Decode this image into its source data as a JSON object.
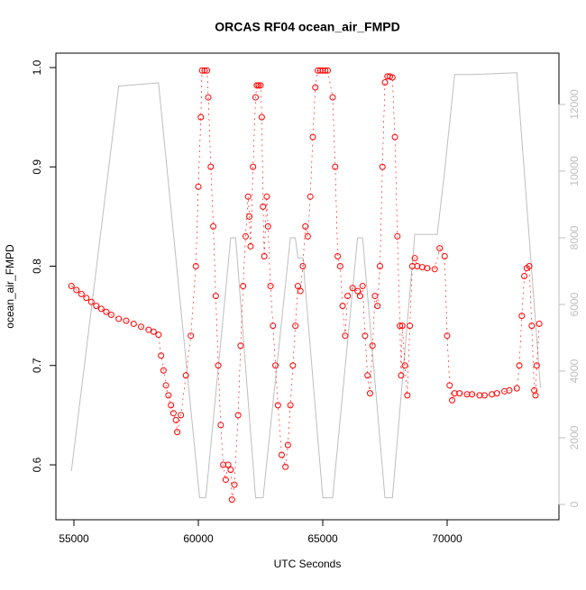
{
  "chart_data": {
    "type": "scatter-line",
    "title": "ORCAS RF04 ocean_air_FMPD",
    "x_label": "UTC Seconds",
    "y_label": "ocean_air_FMPD",
    "xlim": [
      54275,
      74493
    ],
    "ylim": [
      0.5447,
      1.0145
    ],
    "y2lim": [
      -459,
      13540
    ],
    "xticks": [
      55000,
      60000,
      65000,
      70000
    ],
    "yticks": [
      0.6,
      0.7,
      0.8,
      0.9,
      {
        "value": 1,
        "label": "1.0"
      }
    ],
    "y2ticks": [
      0,
      2000,
      4000,
      6000,
      8000,
      10000,
      12000
    ],
    "series": [
      {
        "color": "#ff0000",
        "marker": "circle",
        "x": [
          54900,
          55100,
          55300,
          55500,
          55700,
          55900,
          56100,
          56300,
          56500,
          56800,
          57100,
          57400,
          57700,
          58000,
          58200,
          58400,
          58500,
          58600,
          58700,
          58800,
          58900,
          59000,
          59100,
          59150,
          59300,
          59500,
          59700,
          59900,
          60000,
          60100,
          60150,
          60250,
          60350,
          60400,
          60500,
          60600,
          60700,
          60800,
          60900,
          61000,
          61100,
          61200,
          61300,
          61350,
          61450,
          61600,
          61700,
          61800,
          61900,
          62000,
          62050,
          62100,
          62200,
          62300,
          62350,
          62420,
          62500,
          62550,
          62600,
          62650,
          62750,
          62800,
          62900,
          63000,
          63100,
          63200,
          63350,
          63500,
          63600,
          63700,
          63800,
          63900,
          64000,
          64100,
          64200,
          64300,
          64400,
          64500,
          64600,
          64700,
          64800,
          64900,
          65000,
          65100,
          65200,
          65400,
          65500,
          65600,
          65700,
          65800,
          65900,
          66000,
          66200,
          66400,
          66500,
          66600,
          66700,
          66800,
          66900,
          67000,
          67100,
          67200,
          67300,
          67400,
          67500,
          67600,
          67700,
          67800,
          67900,
          68000,
          68100,
          68150,
          68200,
          68300,
          68400,
          68500,
          68600,
          68700,
          68800,
          69000,
          69200,
          69500,
          69700,
          69900,
          70000,
          70100,
          70200,
          70300,
          70500,
          70800,
          71000,
          71300,
          71500,
          71800,
          72000,
          72300,
          72500,
          72800,
          72900,
          73000,
          73100,
          73200,
          73300,
          73400,
          73500,
          73550,
          73600,
          73700
        ],
        "values": [
          0.78,
          0.776,
          0.772,
          0.768,
          0.764,
          0.76,
          0.757,
          0.754,
          0.751,
          0.747,
          0.745,
          0.742,
          0.739,
          0.736,
          0.734,
          0.731,
          0.71,
          0.695,
          0.68,
          0.67,
          0.66,
          0.652,
          0.645,
          0.633,
          0.65,
          0.69,
          0.73,
          0.8,
          0.88,
          0.95,
          0.997,
          0.997,
          0.997,
          0.97,
          0.9,
          0.84,
          0.77,
          0.7,
          0.64,
          0.6,
          0.585,
          0.6,
          0.595,
          0.565,
          0.58,
          0.65,
          0.72,
          0.78,
          0.83,
          0.87,
          0.85,
          0.82,
          0.9,
          0.97,
          0.982,
          0.982,
          0.982,
          0.95,
          0.86,
          0.81,
          0.87,
          0.84,
          0.78,
          0.74,
          0.7,
          0.66,
          0.61,
          0.598,
          0.62,
          0.66,
          0.7,
          0.74,
          0.78,
          0.775,
          0.8,
          0.84,
          0.83,
          0.87,
          0.93,
          0.98,
          0.997,
          0.997,
          0.997,
          0.997,
          0.997,
          0.97,
          0.9,
          0.81,
          0.8,
          0.76,
          0.73,
          0.77,
          0.778,
          0.775,
          0.77,
          0.78,
          0.73,
          0.69,
          0.672,
          0.72,
          0.77,
          0.76,
          0.8,
          0.9,
          0.985,
          0.991,
          0.991,
          0.99,
          0.93,
          0.83,
          0.74,
          0.69,
          0.74,
          0.7,
          0.67,
          0.74,
          0.8,
          0.808,
          0.8,
          0.799,
          0.798,
          0.797,
          0.818,
          0.81,
          0.73,
          0.68,
          0.665,
          0.672,
          0.672,
          0.671,
          0.671,
          0.67,
          0.67,
          0.671,
          0.672,
          0.674,
          0.675,
          0.677,
          0.7,
          0.75,
          0.79,
          0.798,
          0.8,
          0.74,
          0.675,
          0.67,
          0.7,
          0.742
        ]
      },
      {
        "color": "#bebebe",
        "axis": "y2",
        "marker": "line",
        "x": [
          54900,
          56800,
          58400,
          60050,
          60300,
          61300,
          61500,
          62300,
          62600,
          63700,
          63900,
          64000,
          64200,
          65000,
          65400,
          66400,
          66600,
          67500,
          67800,
          68700,
          69600,
          69900,
          70300,
          71000,
          72800,
          73750
        ],
        "values": [
          1000,
          12550,
          12650,
          200,
          200,
          8000,
          8000,
          200,
          200,
          8000,
          8000,
          7400,
          7400,
          200,
          200,
          8000,
          8000,
          200,
          200,
          8100,
          8100,
          10000,
          12900,
          12900,
          12950,
          3500
        ]
      }
    ]
  }
}
